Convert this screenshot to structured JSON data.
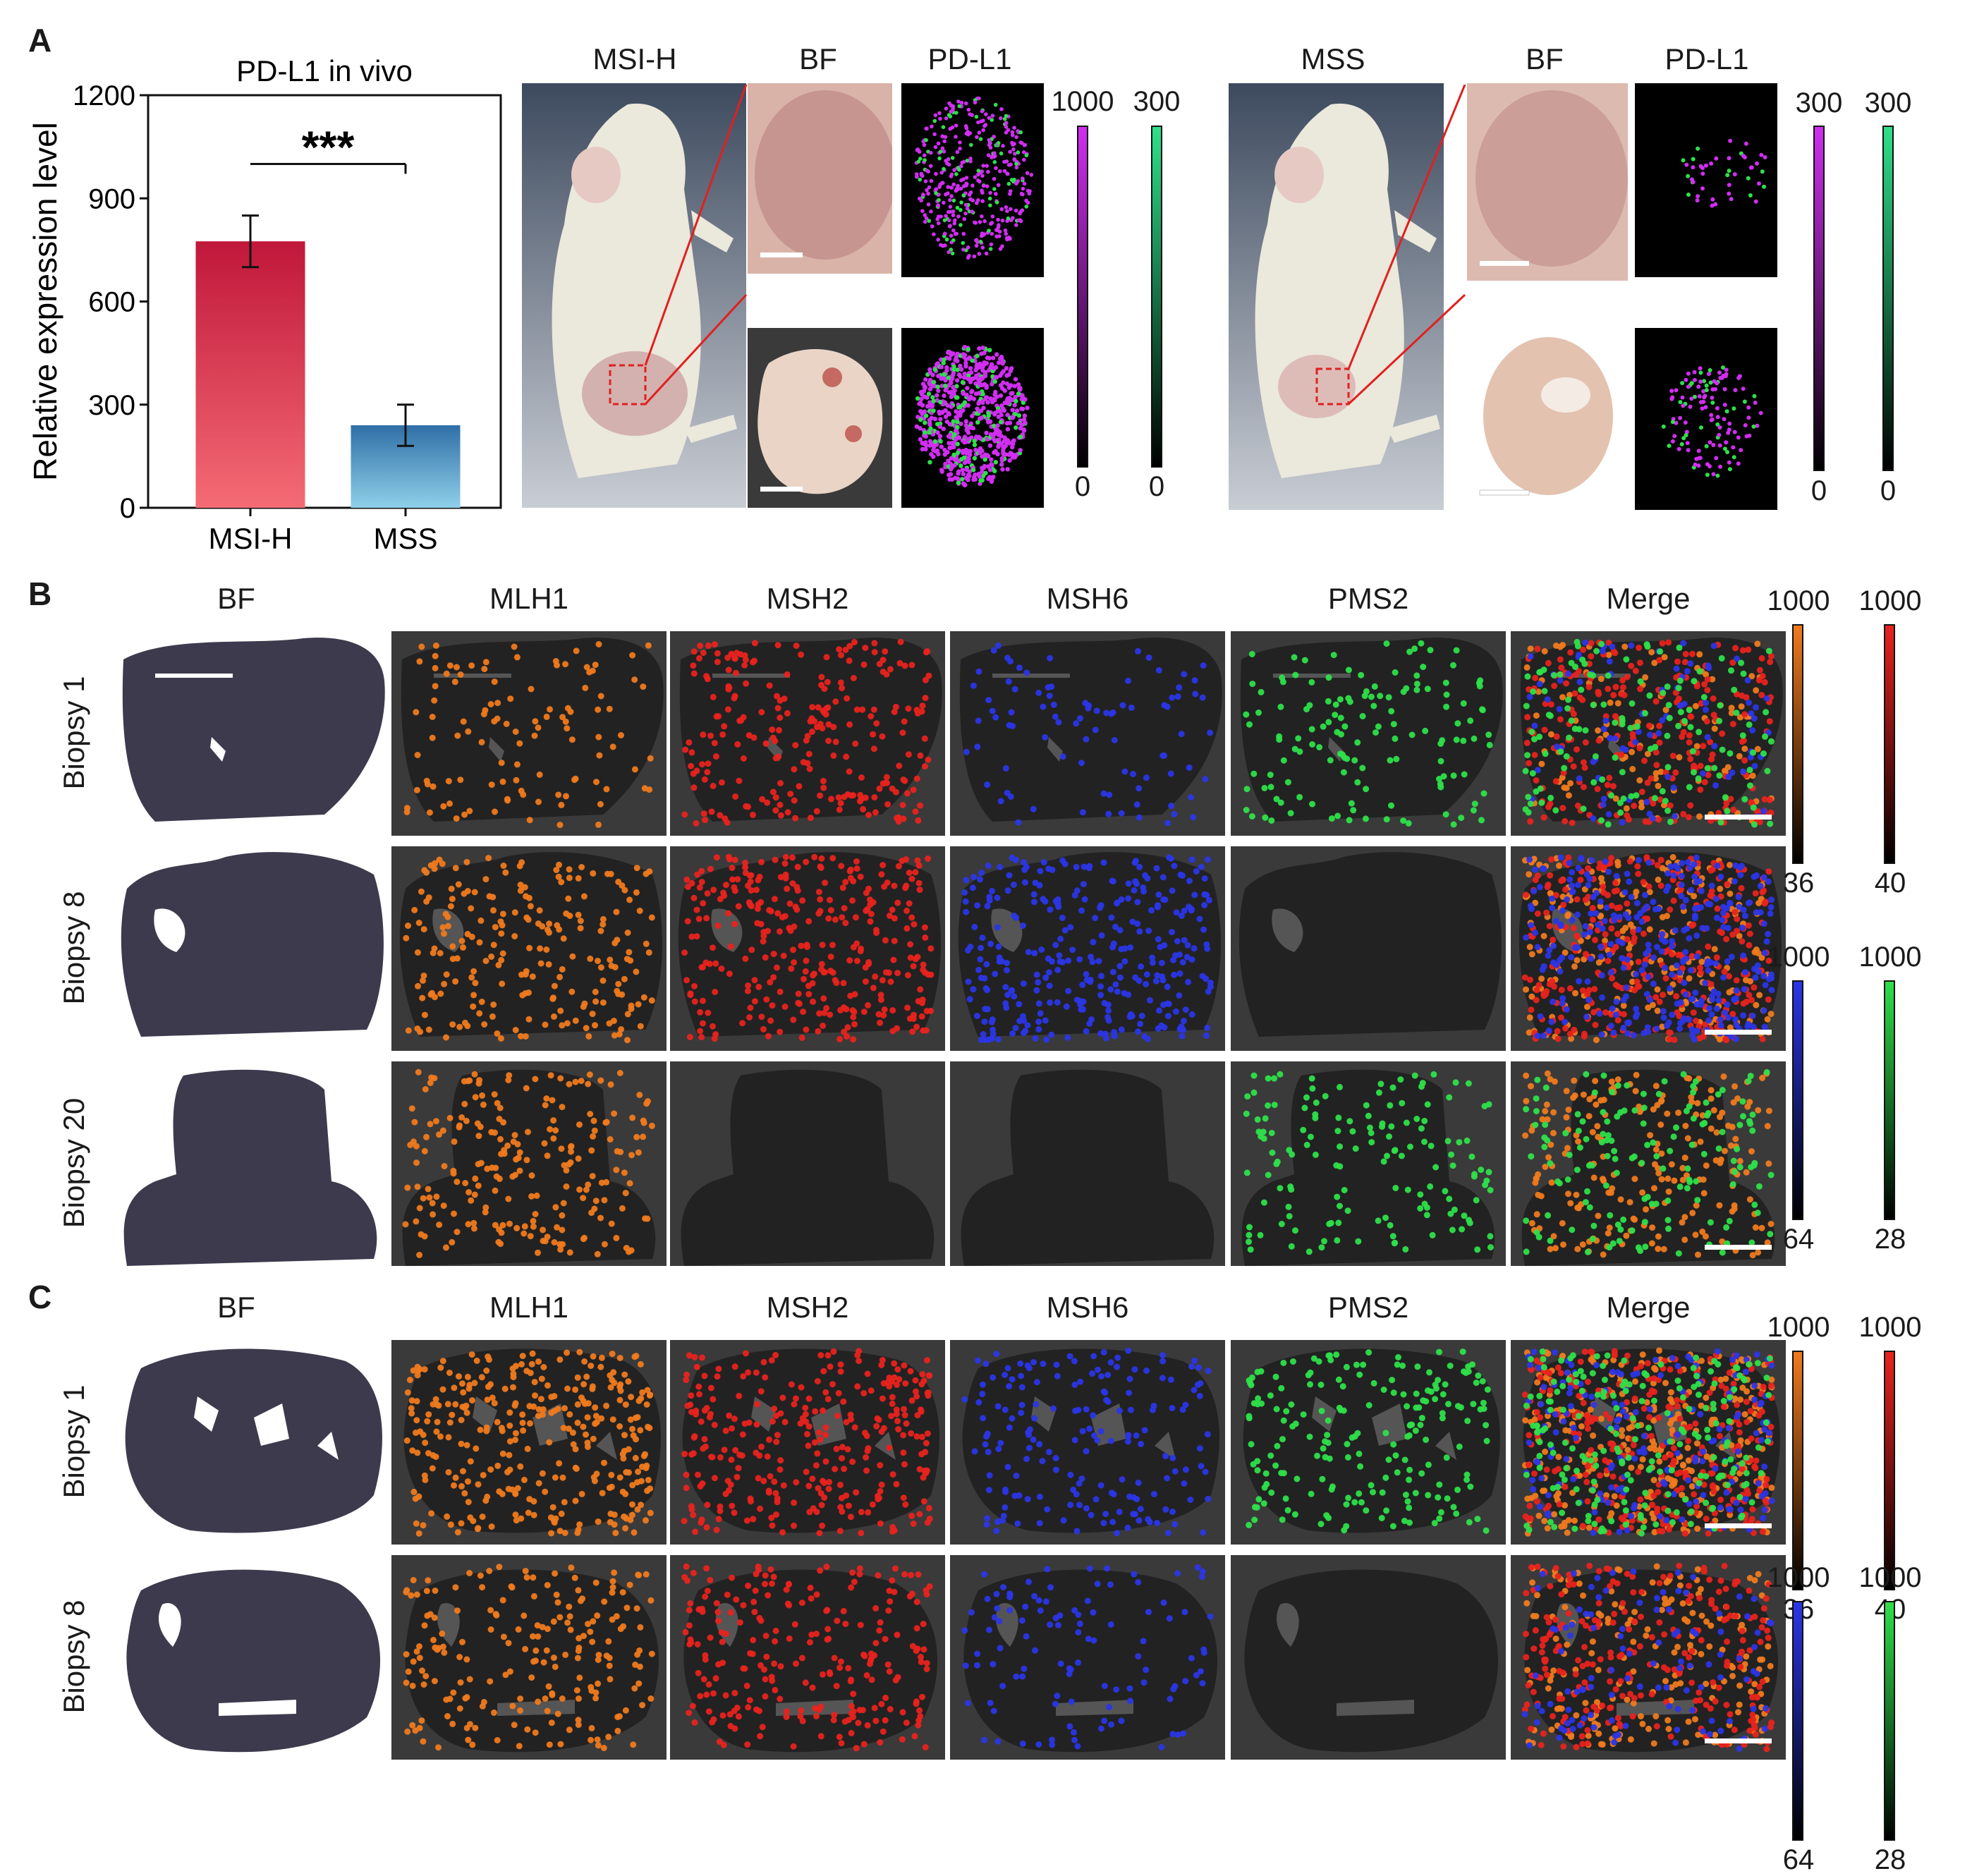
{
  "panels": {
    "A": {
      "letter": "A",
      "chart_data": {
        "type": "bar",
        "title": "PD-L1 in vivo",
        "ylabel": "Relative expression level",
        "xlabel": "",
        "categories": [
          "MSI-H",
          "MSS"
        ],
        "values": [
          775,
          240
        ],
        "errors": [
          75,
          60
        ],
        "ylim": [
          0,
          1200
        ],
        "yticks": [
          "0",
          "300",
          "600",
          "900",
          "1200"
        ],
        "significance": "***",
        "colors": [
          "#e0293f",
          "#3f8fc4"
        ]
      },
      "msih": {
        "title": "MSI-H",
        "bf_label": "BF",
        "pdl1_label": "PD-L1",
        "cbar_magenta": {
          "max": "1000",
          "min": "0"
        },
        "cbar_green": {
          "max": "300",
          "min": "0"
        }
      },
      "mss": {
        "title": "MSS",
        "bf_label": "BF",
        "pdl1_label": "PD-L1",
        "cbar_magenta": {
          "max": "300",
          "min": "0"
        },
        "cbar_green": {
          "max": "300",
          "min": "0"
        }
      }
    },
    "B": {
      "letter": "B",
      "columns": [
        "BF",
        "MLH1",
        "MSH2",
        "MSH6",
        "PMS2",
        "Merge"
      ],
      "rows": [
        "Biopsy 1",
        "Biopsy 8",
        "Biopsy 20"
      ],
      "cbars": {
        "orange": {
          "max": "1000",
          "min": "36"
        },
        "red": {
          "max": "1000",
          "min": "40"
        },
        "blue": {
          "max": "1000",
          "min": "64"
        },
        "green": {
          "max": "1000",
          "min": "28"
        }
      }
    },
    "C": {
      "letter": "C",
      "columns": [
        "BF",
        "MLH1",
        "MSH2",
        "MSH6",
        "PMS2",
        "Merge"
      ],
      "rows": [
        "Biopsy 1",
        "Biopsy 8"
      ],
      "cbars": {
        "orange": {
          "max": "1000",
          "min": "36"
        },
        "red": {
          "max": "1000",
          "min": "40"
        },
        "blue": {
          "max": "1000",
          "min": "64"
        },
        "green": {
          "max": "1000",
          "min": "28"
        }
      }
    }
  },
  "colors": {
    "orange": "#f07a1e",
    "red": "#e8231e",
    "blue": "#2b36e6",
    "green": "#2ee04a",
    "magenta": "#d02ef0",
    "tissue_dark": "#222222",
    "bg_dark": "#3a3a3a"
  }
}
